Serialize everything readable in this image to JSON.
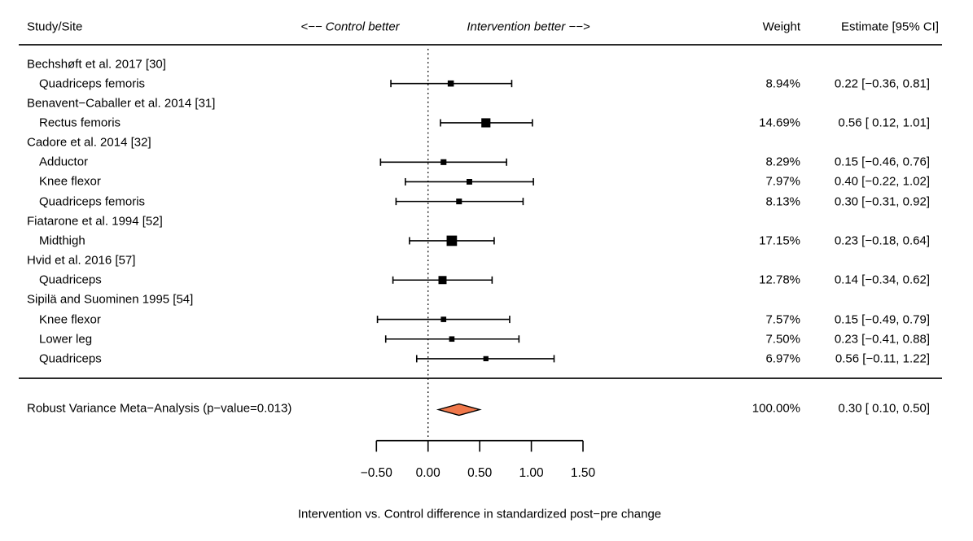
{
  "header": {
    "study_site": "Study/Site",
    "control_better": "<−− Control better",
    "intervention_better": "Intervention better −−>",
    "weight": "Weight",
    "estimate": "Estimate [95% CI]"
  },
  "chart_data": {
    "type": "forest",
    "xlabel": "Intervention vs. Control difference in standardized post−pre change",
    "x_axis": {
      "min": -0.5,
      "max": 1.5,
      "ticks": [
        -0.5,
        0,
        0.5,
        1,
        1.5
      ],
      "tick_labels": [
        "−0.50",
        "0.00",
        "0.50",
        "1.00",
        "1.50"
      ],
      "zero_line": 0
    },
    "marker_color": "#000000",
    "diamond_color": "#F0784B",
    "groups": [
      {
        "study": "Bechshøft et al. 2017 [30]",
        "sites": [
          {
            "site": "Quadriceps femoris",
            "weight_pct": 8.94,
            "weight_label": "8.94%",
            "estimate": 0.22,
            "ci_low": -0.36,
            "ci_high": 0.81,
            "estimate_label": "0.22 [−0.36, 0.81]"
          }
        ]
      },
      {
        "study": "Benavent−Caballer et al. 2014 [31]",
        "sites": [
          {
            "site": "Rectus femoris",
            "weight_pct": 14.69,
            "weight_label": "14.69%",
            "estimate": 0.56,
            "ci_low": 0.12,
            "ci_high": 1.01,
            "estimate_label": "0.56 [ 0.12, 1.01]"
          }
        ]
      },
      {
        "study": "Cadore et al. 2014 [32]",
        "sites": [
          {
            "site": "Adductor",
            "weight_pct": 8.29,
            "weight_label": "8.29%",
            "estimate": 0.15,
            "ci_low": -0.46,
            "ci_high": 0.76,
            "estimate_label": "0.15 [−0.46, 0.76]"
          },
          {
            "site": "Knee flexor",
            "weight_pct": 7.97,
            "weight_label": "7.97%",
            "estimate": 0.4,
            "ci_low": -0.22,
            "ci_high": 1.02,
            "estimate_label": "0.40 [−0.22, 1.02]"
          },
          {
            "site": "Quadriceps femoris",
            "weight_pct": 8.13,
            "weight_label": "8.13%",
            "estimate": 0.3,
            "ci_low": -0.31,
            "ci_high": 0.92,
            "estimate_label": "0.30 [−0.31, 0.92]"
          }
        ]
      },
      {
        "study": "Fiatarone et al. 1994 [52]",
        "sites": [
          {
            "site": "Midthigh",
            "weight_pct": 17.15,
            "weight_label": "17.15%",
            "estimate": 0.23,
            "ci_low": -0.18,
            "ci_high": 0.64,
            "estimate_label": "0.23 [−0.18, 0.64]"
          }
        ]
      },
      {
        "study": "Hvid et al. 2016 [57]",
        "sites": [
          {
            "site": "Quadriceps",
            "weight_pct": 12.78,
            "weight_label": "12.78%",
            "estimate": 0.14,
            "ci_low": -0.34,
            "ci_high": 0.62,
            "estimate_label": "0.14 [−0.34, 0.62]"
          }
        ]
      },
      {
        "study": "Sipilä and Suominen 1995 [54]",
        "sites": [
          {
            "site": "Knee flexor",
            "weight_pct": 7.57,
            "weight_label": "7.57%",
            "estimate": 0.15,
            "ci_low": -0.49,
            "ci_high": 0.79,
            "estimate_label": "0.15 [−0.49, 0.79]"
          },
          {
            "site": "Lower leg",
            "weight_pct": 7.5,
            "weight_label": "7.50%",
            "estimate": 0.23,
            "ci_low": -0.41,
            "ci_high": 0.88,
            "estimate_label": "0.23 [−0.41, 0.88]"
          },
          {
            "site": "Quadriceps",
            "weight_pct": 6.97,
            "weight_label": "6.97%",
            "estimate": 0.56,
            "ci_low": -0.11,
            "ci_high": 1.22,
            "estimate_label": "0.56 [−0.11, 1.22]"
          }
        ]
      }
    ],
    "summary": {
      "label": "Robust Variance Meta−Analysis (p−value=0.013)",
      "weight_pct": 100.0,
      "weight_label": "100.00%",
      "estimate": 0.3,
      "ci_low": 0.1,
      "ci_high": 0.5,
      "estimate_label": "0.30 [ 0.10, 0.50]",
      "p_value": 0.013
    }
  }
}
